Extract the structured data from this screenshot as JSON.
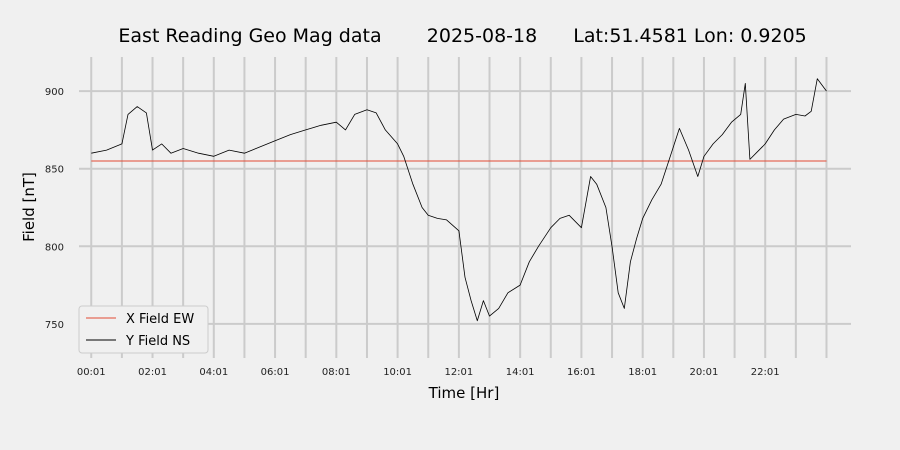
{
  "chart_data": {
    "type": "line",
    "title_parts": [
      "East Reading Geo Mag data",
      "2025-08-18",
      "Lat:51.4581  Lon: 0.9205"
    ],
    "xlabel": "Time  [Hr]",
    "ylabel": "Field  [nT]",
    "x_ticks": [
      "00:01",
      "02:01",
      "04:01",
      "06:01",
      "08:01",
      "10:01",
      "12:01",
      "14:01",
      "16:01",
      "18:01",
      "20:01",
      "22:01"
    ],
    "x_range_hours": [
      -0.4,
      24.8
    ],
    "y_ticks": [
      750,
      800,
      850,
      900
    ],
    "ylim": [
      728,
      922
    ],
    "grid": true,
    "legend_position": "lower-left",
    "series": [
      {
        "name": "X Field EW",
        "color": "#e24a33",
        "x": [
          0,
          24
        ],
        "y": [
          855,
          855
        ]
      },
      {
        "name": "Y Field NS",
        "color": "#000000",
        "x": [
          0,
          0.5,
          1.0,
          1.2,
          1.5,
          1.8,
          2.0,
          2.3,
          2.6,
          3.0,
          3.5,
          4.0,
          4.5,
          5.0,
          5.5,
          6.0,
          6.5,
          7.0,
          7.5,
          8.0,
          8.3,
          8.6,
          9.0,
          9.3,
          9.6,
          10.0,
          10.2,
          10.5,
          10.8,
          11.0,
          11.3,
          11.6,
          12.0,
          12.2,
          12.4,
          12.6,
          12.8,
          13.0,
          13.3,
          13.6,
          14.0,
          14.3,
          14.6,
          15.0,
          15.3,
          15.6,
          16.0,
          16.3,
          16.5,
          16.8,
          17.0,
          17.2,
          17.4,
          17.6,
          17.8,
          18.0,
          18.3,
          18.6,
          18.9,
          19.2,
          19.5,
          19.8,
          20.0,
          20.3,
          20.6,
          20.9,
          21.2,
          21.35,
          21.5,
          21.7,
          22.0,
          22.3,
          22.6,
          23.0,
          23.3,
          23.5,
          23.7,
          24.0
        ],
        "y": [
          860,
          862,
          866,
          885,
          890,
          886,
          862,
          866,
          860,
          863,
          860,
          858,
          862,
          860,
          864,
          868,
          872,
          875,
          878,
          880,
          875,
          885,
          888,
          886,
          875,
          866,
          858,
          840,
          825,
          820,
          818,
          817,
          810,
          780,
          765,
          752,
          765,
          755,
          760,
          770,
          775,
          790,
          800,
          812,
          818,
          820,
          812,
          845,
          840,
          825,
          800,
          770,
          760,
          790,
          805,
          818,
          830,
          840,
          858,
          876,
          862,
          845,
          858,
          866,
          872,
          880,
          885,
          905,
          856,
          860,
          866,
          875,
          882,
          885,
          884,
          887,
          908,
          900
        ]
      }
    ]
  }
}
